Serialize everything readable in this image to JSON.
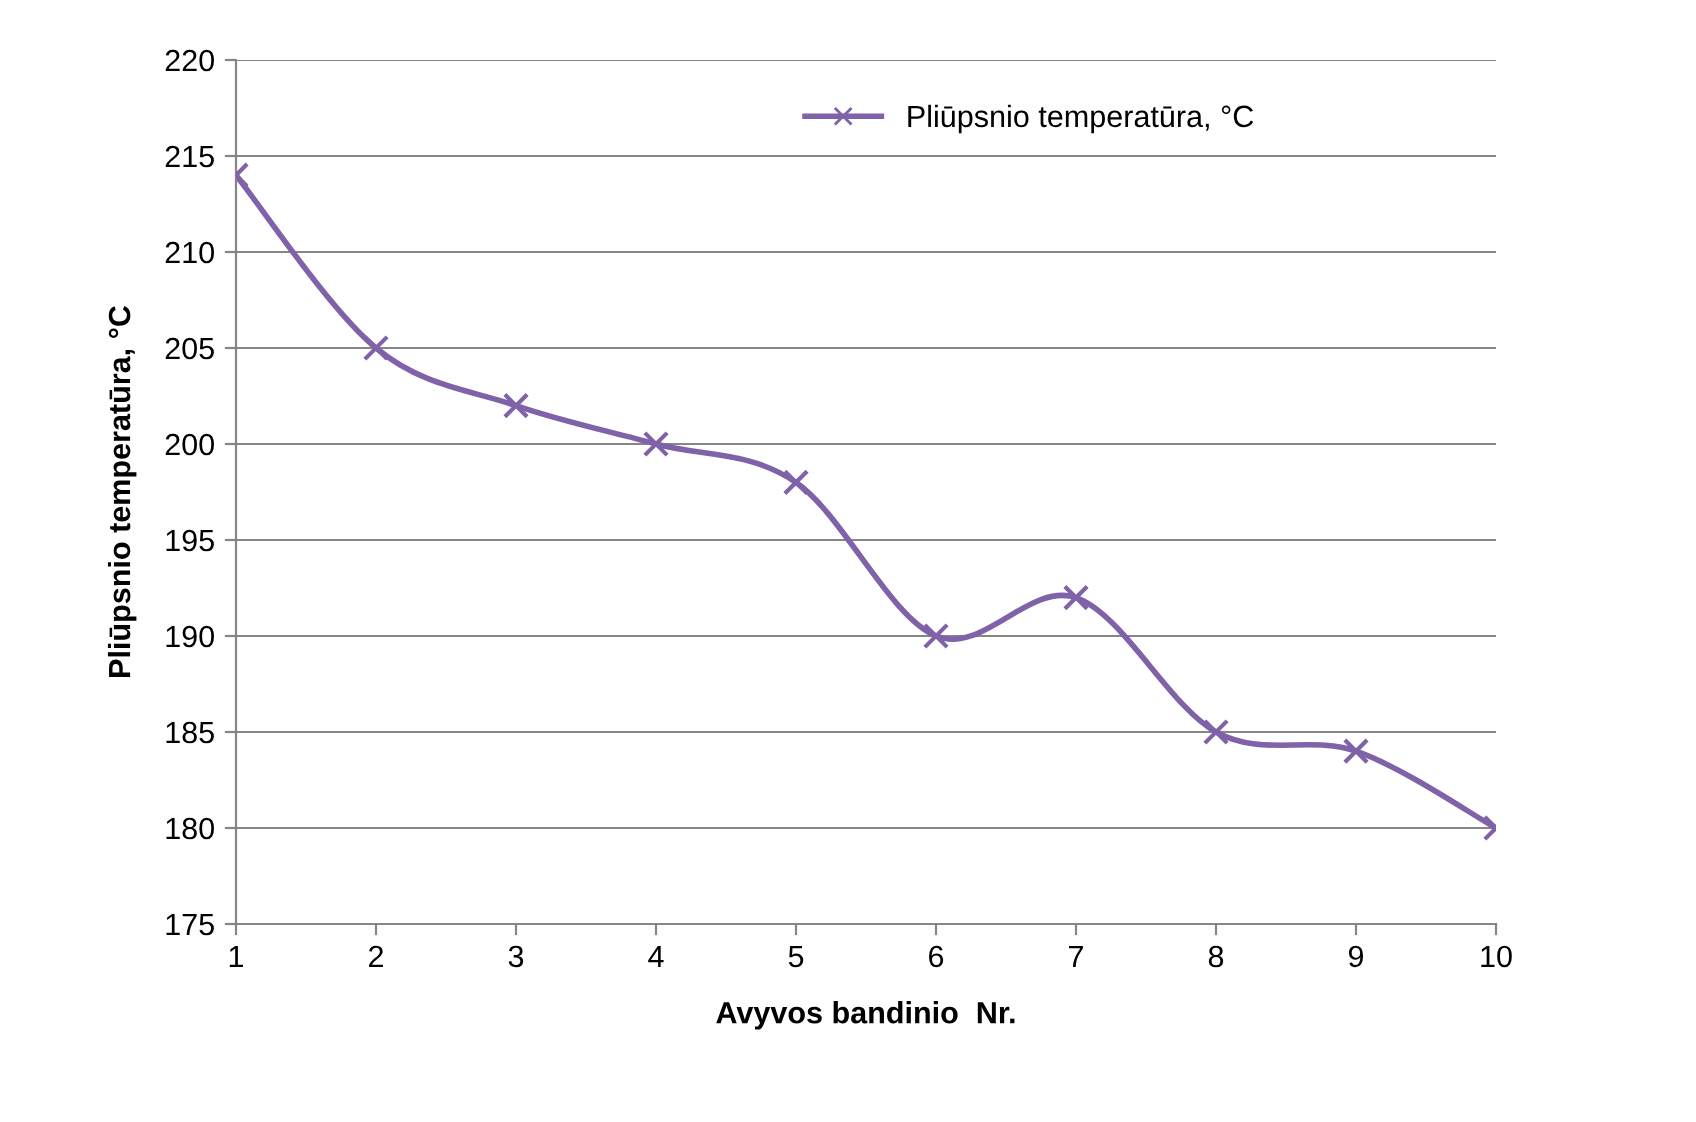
{
  "chart_data": {
    "type": "line",
    "xlabel": "Avyvos bandinio  Nr.",
    "ylabel": "Pliūpsnio temperatūra, °C",
    "x": [
      1,
      2,
      3,
      4,
      5,
      6,
      7,
      8,
      9,
      10
    ],
    "series": [
      {
        "name": "Pliūpsnio temperatūra, °C",
        "color": "#7f62a8",
        "values": [
          214,
          205,
          202,
          200,
          198,
          190,
          192,
          185,
          184,
          180
        ]
      }
    ],
    "xlim": [
      1,
      10
    ],
    "xticks": [
      1,
      2,
      3,
      4,
      5,
      6,
      7,
      8,
      9,
      10
    ],
    "ylim": [
      175,
      220
    ],
    "yticks": [
      175,
      180,
      185,
      190,
      195,
      200,
      205,
      210,
      215,
      220
    ],
    "grid": "y",
    "legend": "top right",
    "marker": "cross",
    "line_style": "solid"
  }
}
